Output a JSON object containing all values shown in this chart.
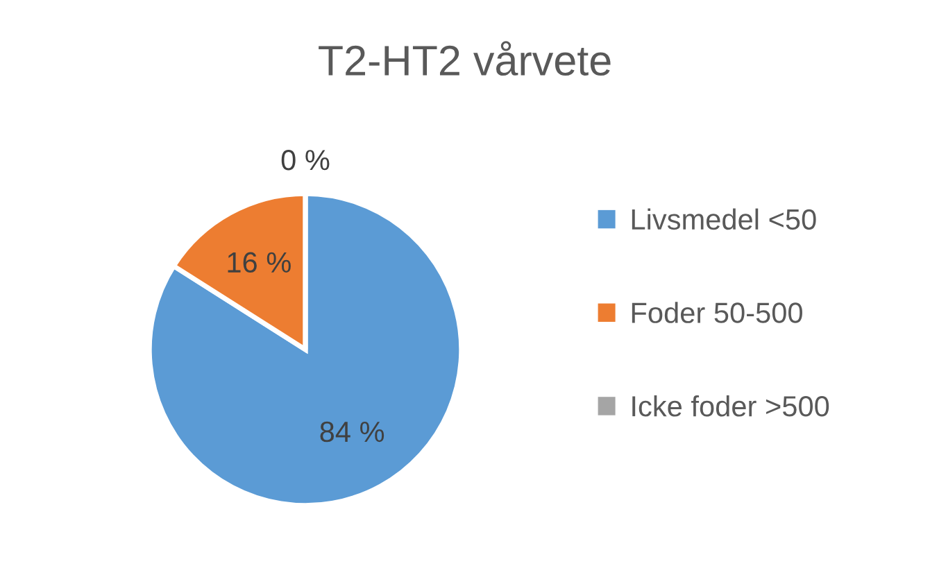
{
  "chart_data": {
    "type": "pie",
    "title": "T2-HT2 vårvete",
    "categories": [
      "Livsmedel <50",
      "Foder 50-500",
      "Icke foder >500"
    ],
    "values": [
      84,
      16,
      0
    ],
    "colors": [
      "#5b9bd5",
      "#ed7d31",
      "#a5a5a5"
    ],
    "value_labels": [
      "84 %",
      "16 %",
      "0 %"
    ],
    "legend": "right"
  }
}
